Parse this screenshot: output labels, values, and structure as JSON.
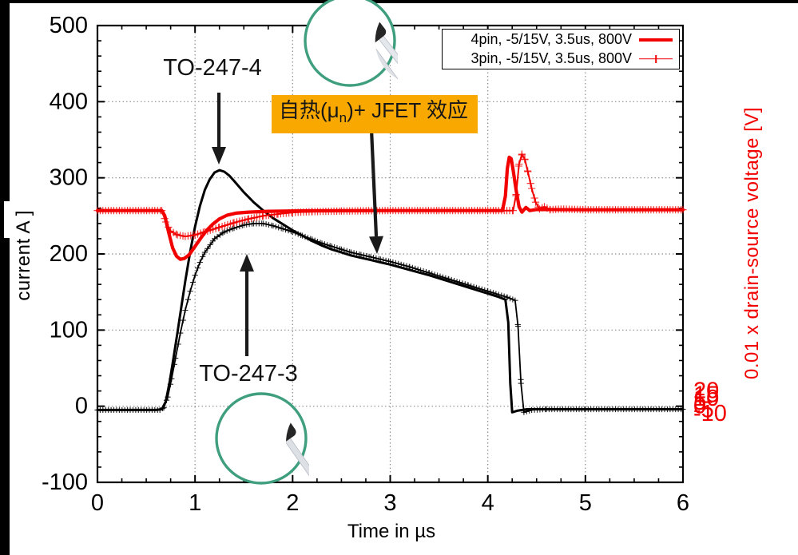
{
  "chart_data": {
    "type": "line",
    "title": "",
    "grid": "dotted",
    "legend_position": "top-right",
    "x_axis": {
      "label": "Time in µs",
      "range": [
        0,
        6
      ],
      "ticks": [
        0,
        1,
        2,
        3,
        4,
        5,
        6
      ],
      "minor_step": 0.25
    },
    "y_left": {
      "label": "current A ]",
      "range": [
        -100,
        500
      ],
      "ticks": [
        500,
        400,
        300,
        200,
        100,
        0,
        -100
      ],
      "minor_step": 20,
      "color": "#000000"
    },
    "y_right": {
      "label": "0.01 x drain-source voltage [V]",
      "range": [
        -10,
        20
      ],
      "ticks": [
        20,
        15,
        10,
        5,
        0,
        -5,
        -10
      ],
      "minor_step": 1,
      "color": "#f20000"
    },
    "series": [
      {
        "name": "4pin drain current (A)",
        "axis": "left",
        "color": "#000000",
        "width": 3,
        "marker": "none",
        "points": [
          [
            0,
            -5
          ],
          [
            0.6,
            -5
          ],
          [
            0.66,
            -4
          ],
          [
            0.7,
            6
          ],
          [
            0.74,
            32
          ],
          [
            0.78,
            64
          ],
          [
            0.82,
            97
          ],
          [
            0.86,
            131
          ],
          [
            0.9,
            164
          ],
          [
            0.95,
            203
          ],
          [
            1,
            236
          ],
          [
            1.05,
            263
          ],
          [
            1.1,
            284
          ],
          [
            1.15,
            298
          ],
          [
            1.2,
            307
          ],
          [
            1.25,
            310
          ],
          [
            1.3,
            308
          ],
          [
            1.35,
            303
          ],
          [
            1.4,
            296
          ],
          [
            1.5,
            281
          ],
          [
            1.6,
            268
          ],
          [
            1.7,
            257
          ],
          [
            1.8,
            247
          ],
          [
            1.9,
            239
          ],
          [
            2,
            231
          ],
          [
            2.1,
            224
          ],
          [
            2.2,
            217
          ],
          [
            2.3,
            211
          ],
          [
            2.4,
            206
          ],
          [
            2.5,
            202
          ],
          [
            2.6,
            198
          ],
          [
            2.7,
            195
          ],
          [
            2.8,
            192
          ],
          [
            2.9,
            189
          ],
          [
            3,
            186
          ],
          [
            3.2,
            179
          ],
          [
            3.4,
            172
          ],
          [
            3.6,
            164
          ],
          [
            3.8,
            156
          ],
          [
            4,
            148
          ],
          [
            4.1,
            144
          ],
          [
            4.18,
            140
          ],
          [
            4.21,
            110
          ],
          [
            4.23,
            30
          ],
          [
            4.25,
            -8
          ],
          [
            4.3,
            -6
          ],
          [
            4.4,
            -4
          ],
          [
            4.6,
            -4
          ],
          [
            5,
            -4
          ],
          [
            6,
            -4
          ]
        ]
      },
      {
        "name": "3pin drain current (A)",
        "axis": "left",
        "color": "#000000",
        "width": 1.8,
        "marker": "plus",
        "marker_size": 3.6,
        "points": [
          [
            0,
            -5
          ],
          [
            0.64,
            -5
          ],
          [
            0.68,
            -2
          ],
          [
            0.72,
            12
          ],
          [
            0.76,
            36
          ],
          [
            0.8,
            63
          ],
          [
            0.85,
            96
          ],
          [
            0.9,
            126
          ],
          [
            0.95,
            151
          ],
          [
            1,
            172
          ],
          [
            1.05,
            189
          ],
          [
            1.1,
            202
          ],
          [
            1.2,
            220
          ],
          [
            1.3,
            229
          ],
          [
            1.4,
            234
          ],
          [
            1.5,
            238
          ],
          [
            1.6,
            240
          ],
          [
            1.7,
            240
          ],
          [
            1.8,
            237
          ],
          [
            1.9,
            233
          ],
          [
            2,
            229
          ],
          [
            2.1,
            224
          ],
          [
            2.2,
            219
          ],
          [
            2.3,
            214
          ],
          [
            2.4,
            210
          ],
          [
            2.5,
            206
          ],
          [
            2.6,
            202
          ],
          [
            2.7,
            199
          ],
          [
            2.8,
            196
          ],
          [
            2.9,
            193
          ],
          [
            3,
            190
          ],
          [
            3.2,
            183
          ],
          [
            3.4,
            175
          ],
          [
            3.6,
            167
          ],
          [
            3.8,
            159
          ],
          [
            4,
            151
          ],
          [
            4.2,
            143
          ],
          [
            4.28,
            139
          ],
          [
            4.31,
            105
          ],
          [
            4.34,
            30
          ],
          [
            4.37,
            -8
          ],
          [
            4.45,
            -5
          ],
          [
            4.6,
            -4
          ],
          [
            5,
            -4
          ],
          [
            6,
            -4
          ]
        ]
      },
      {
        "name": "4pin 0.01 x drain-source voltage (V)",
        "axis": "right",
        "color": "#f20000",
        "width": 4.2,
        "marker": "none",
        "points": [
          [
            0,
            7.85
          ],
          [
            0.5,
            7.85
          ],
          [
            0.66,
            7.85
          ],
          [
            0.69,
            7.5
          ],
          [
            0.73,
            6.4
          ],
          [
            0.77,
            5.4
          ],
          [
            0.81,
            4.85
          ],
          [
            0.85,
            4.65
          ],
          [
            0.89,
            4.7
          ],
          [
            0.94,
            4.95
          ],
          [
            1,
            5.5
          ],
          [
            1.06,
            6.05
          ],
          [
            1.12,
            6.55
          ],
          [
            1.18,
            6.95
          ],
          [
            1.25,
            7.3
          ],
          [
            1.33,
            7.55
          ],
          [
            1.42,
            7.68
          ],
          [
            1.55,
            7.75
          ],
          [
            1.75,
            7.8
          ],
          [
            2,
            7.82
          ],
          [
            2.5,
            7.84
          ],
          [
            3,
            7.85
          ],
          [
            3.5,
            7.85
          ],
          [
            4,
            7.85
          ],
          [
            4.15,
            7.85
          ],
          [
            4.18,
            8.8
          ],
          [
            4.2,
            10.6
          ],
          [
            4.22,
            11.35
          ],
          [
            4.24,
            11.25
          ],
          [
            4.26,
            10.5
          ],
          [
            4.29,
            9.2
          ],
          [
            4.32,
            8.1
          ],
          [
            4.35,
            7.75
          ],
          [
            4.39,
            8.05
          ],
          [
            4.43,
            7.85
          ],
          [
            4.5,
            7.92
          ],
          [
            5,
            7.9
          ],
          [
            6,
            7.9
          ]
        ]
      },
      {
        "name": "3pin 0.01 x drain-source voltage (V)",
        "axis": "right",
        "color": "#f20000",
        "width": 2,
        "marker": "plus",
        "marker_size": 4.6,
        "points": [
          [
            0,
            7.85
          ],
          [
            0.66,
            7.85
          ],
          [
            0.7,
            7.1
          ],
          [
            0.75,
            6.5
          ],
          [
            0.82,
            6.25
          ],
          [
            0.9,
            6.15
          ],
          [
            1,
            6.25
          ],
          [
            1.1,
            6.45
          ],
          [
            1.25,
            6.75
          ],
          [
            1.4,
            7.05
          ],
          [
            1.55,
            7.3
          ],
          [
            1.7,
            7.5
          ],
          [
            1.85,
            7.62
          ],
          [
            2,
            7.72
          ],
          [
            2.2,
            7.78
          ],
          [
            2.5,
            7.82
          ],
          [
            3,
            7.85
          ],
          [
            3.5,
            7.85
          ],
          [
            4,
            7.85
          ],
          [
            4.26,
            7.85
          ],
          [
            4.29,
            8.9
          ],
          [
            4.32,
            10.9
          ],
          [
            4.35,
            11.55
          ],
          [
            4.38,
            11.2
          ],
          [
            4.41,
            10.4
          ],
          [
            4.45,
            9.3
          ],
          [
            4.49,
            8.4
          ],
          [
            4.53,
            7.95
          ],
          [
            4.58,
            8.1
          ],
          [
            4.64,
            7.9
          ],
          [
            4.75,
            7.95
          ],
          [
            5,
            7.9
          ],
          [
            6,
            7.9
          ]
        ]
      }
    ]
  },
  "legend": {
    "items": [
      {
        "label": "4pin, -5/15V, 3.5us, 800V",
        "marker": "red-solid-line"
      },
      {
        "label": "3pin, -5/15V, 3.5us, 800V",
        "marker": "red-line-plus"
      }
    ],
    "color": "#f20000"
  },
  "annotations": {
    "to247_4": "TO-247-4",
    "to247_3": "TO-247-3",
    "selfheat_prefix": "自热(μ",
    "selfheat_sub": "n",
    "selfheat_suffix": ")+ JFET 效应",
    "highlight_color": "#F9A800",
    "circle_border_color": "#3E9E7E"
  }
}
